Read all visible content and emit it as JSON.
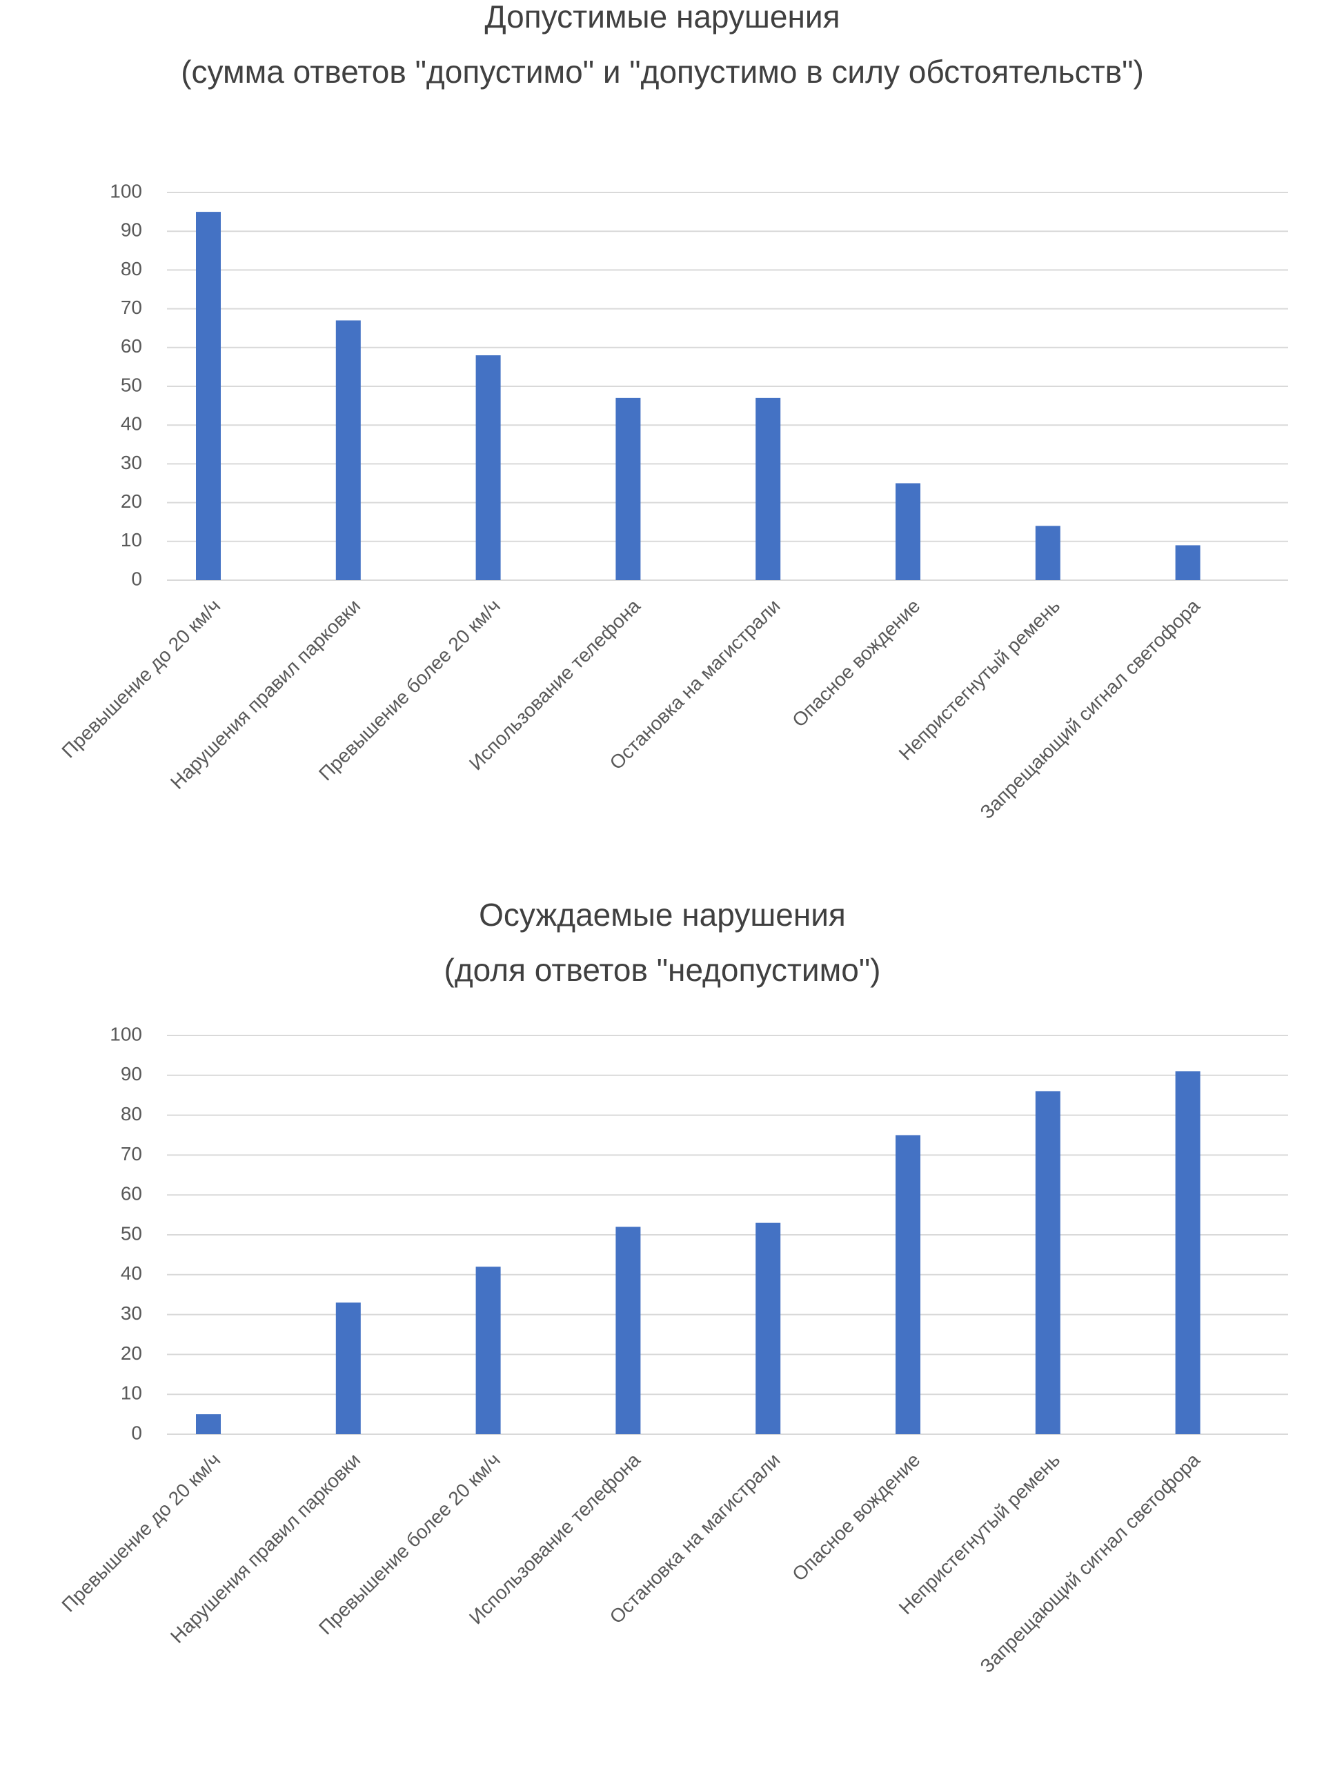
{
  "chart_data": [
    {
      "type": "bar",
      "title": "Допустимые нарушения",
      "subtitle": "(сумма ответов \"допустимо\" и \"допустимо в силу обстоятельств\")",
      "categories": [
        "Превышение до 20 км/ч",
        "Нарушения правил парковки",
        "Превышение более 20 км/ч",
        "Использование телефона",
        "Остановка на магистрали",
        "Опасное вождение",
        "Непристегнутый ремень",
        "Запрещающий сигнал светофора"
      ],
      "values": [
        95,
        67,
        58,
        47,
        47,
        25,
        14,
        9
      ],
      "color": "#4472c4",
      "ylim": [
        0,
        100
      ],
      "yticks": [
        0,
        10,
        20,
        30,
        40,
        50,
        60,
        70,
        80,
        90,
        100
      ],
      "grid": true
    },
    {
      "type": "bar",
      "title": "Осуждаемые нарушения",
      "subtitle": "(доля ответов \"недопустимо\")",
      "categories": [
        "Превышение до 20 км/ч",
        "Нарушения правил парковки",
        "Превышение более 20 км/ч",
        "Использование телефона",
        "Остановка на магистрали",
        "Опасное вождение",
        "Непристегнутый ремень",
        "Запрещающий сигнал светофора"
      ],
      "values": [
        5,
        33,
        42,
        52,
        53,
        75,
        86,
        91
      ],
      "color": "#4472c4",
      "ylim": [
        0,
        100
      ],
      "yticks": [
        0,
        10,
        20,
        30,
        40,
        50,
        60,
        70,
        80,
        90,
        100
      ],
      "grid": true
    }
  ]
}
